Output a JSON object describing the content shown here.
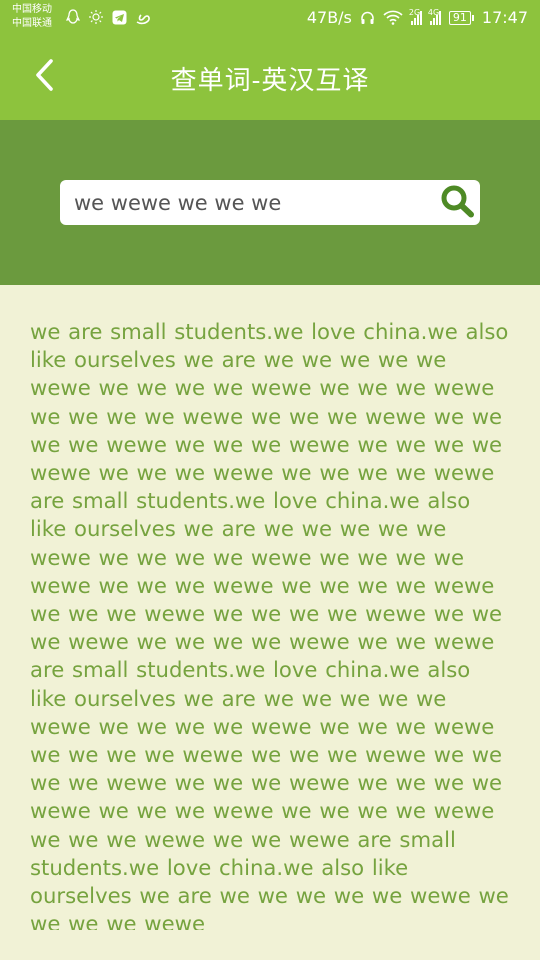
{
  "status_bar": {
    "carrier1": "中国移动",
    "carrier2": "中国联通",
    "net_speed": "47B/s",
    "signal1_label": "2G",
    "signal2_label": "4G",
    "battery": "91",
    "time": "17:47"
  },
  "header": {
    "title": "查单词-英汉互译",
    "back_icon": "chevron-left-icon"
  },
  "search": {
    "value": "we wewe we we we",
    "icon": "search-icon",
    "accent_color": "#4e8a25"
  },
  "result": {
    "text": "we are small students.we love china.we also like ourselves we are we we we we we wewe we we we we wewe we we we wewe we we we we wewe we we we wewe we we we we wewe we we we wewe we we we we wewe we we we wewe we we we we wewe are small students.we love china.we also like ourselves we are we we we we we wewe we we we we wewe we we we we wewe we we we wewe we we we we wewe we we we wewe we we we we wewe we we we wewe we we we we wewe we we wewe are small students.we love china.we also like ourselves we are we we we we we wewe we we we we wewe we we we wewe we we we we wewe we we we wewe we we we we wewe we we we wewe we we we we wewe we we we wewe we we we we wewe we we we wewe we we wewe are small students.we love china.we also like ourselves we are we we we we we wewe we we we we wewe"
  },
  "colors": {
    "header_bg": "#8dc33d",
    "search_band_bg": "#6b9a3e",
    "content_bg": "#f1f2d6",
    "text_color": "#76a33f"
  }
}
